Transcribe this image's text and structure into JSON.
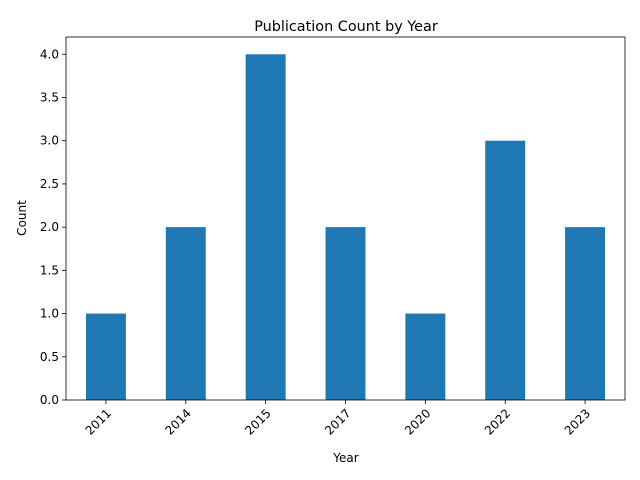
{
  "chart_data": {
    "type": "bar",
    "title": "Publication Count by Year",
    "xlabel": "Year",
    "ylabel": "Count",
    "categories": [
      "2011",
      "2014",
      "2015",
      "2017",
      "2020",
      "2022",
      "2023"
    ],
    "values": [
      1,
      2,
      4,
      2,
      1,
      3,
      2
    ],
    "ylim": [
      0,
      4.2
    ],
    "yticks": [
      "0.0",
      "0.5",
      "1.0",
      "1.5",
      "2.0",
      "2.5",
      "3.0",
      "3.5",
      "4.0"
    ],
    "x_tick_rotation": 45,
    "bar_color": "#1f77b4",
    "grid": false,
    "legend": "none"
  }
}
